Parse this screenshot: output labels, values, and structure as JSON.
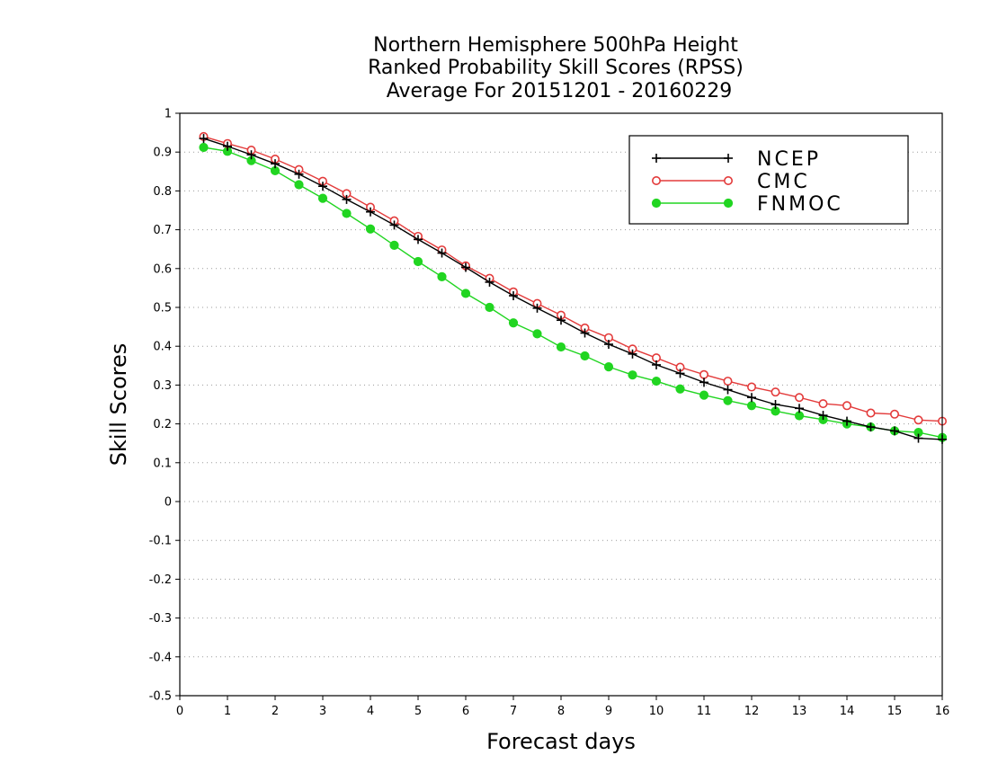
{
  "chart_data": {
    "type": "line",
    "title": [
      "Northern Hemisphere 500hPa Height",
      "Ranked Probability Skill Scores (RPSS)",
      "Average For 20151201 - 20160229"
    ],
    "xlabel": "Forecast days",
    "ylabel": "Skill Scores",
    "xlim": [
      0,
      16
    ],
    "ylim": [
      -0.5,
      1
    ],
    "x_ticks": [
      0,
      1,
      2,
      3,
      4,
      5,
      6,
      7,
      8,
      9,
      10,
      11,
      12,
      13,
      14,
      15,
      16
    ],
    "x_tick_labels": [
      "0",
      "1",
      "2",
      "3",
      "4",
      "5",
      "6",
      "7",
      "8",
      "9",
      "10",
      "11",
      "12",
      "13",
      "14",
      "15",
      "16"
    ],
    "y_ticks": [
      -0.5,
      -0.4,
      -0.3,
      -0.2,
      -0.1,
      0,
      0.1,
      0.2,
      0.3,
      0.4,
      0.5,
      0.6,
      0.7,
      0.8,
      0.9,
      1
    ],
    "y_tick_labels": [
      "-0.5",
      "-0.4",
      "-0.3",
      "-0.2",
      "-0.1",
      "0",
      "0.1",
      "0.2",
      "0.3",
      "0.4",
      "0.5",
      "0.6",
      "0.7",
      "0.8",
      "0.9",
      "1"
    ],
    "grid": "horizontal dotted",
    "legend_position": "top-right",
    "x": [
      0.5,
      1,
      1.5,
      2,
      2.5,
      3,
      3.5,
      4,
      4.5,
      5,
      5.5,
      6,
      6.5,
      7,
      7.5,
      8,
      8.5,
      9,
      9.5,
      10,
      10.5,
      11,
      11.5,
      12,
      12.5,
      13,
      13.5,
      14,
      14.5,
      15,
      15.5,
      16
    ],
    "series": [
      {
        "name": "NCEP",
        "color": "#000000",
        "marker": "plus",
        "values": [
          0.935,
          0.915,
          0.893,
          0.87,
          0.843,
          0.812,
          0.778,
          0.746,
          0.712,
          0.675,
          0.64,
          0.603,
          0.565,
          0.53,
          0.498,
          0.467,
          0.434,
          0.405,
          0.38,
          0.352,
          0.33,
          0.307,
          0.288,
          0.268,
          0.25,
          0.24,
          0.222,
          0.207,
          0.192,
          0.182,
          0.163,
          0.16
        ]
      },
      {
        "name": "CMC",
        "color": "#e33b3b",
        "marker": "open-circle",
        "values": [
          0.94,
          0.922,
          0.905,
          0.882,
          0.855,
          0.825,
          0.793,
          0.758,
          0.723,
          0.683,
          0.648,
          0.607,
          0.575,
          0.54,
          0.51,
          0.48,
          0.447,
          0.422,
          0.393,
          0.37,
          0.346,
          0.327,
          0.31,
          0.295,
          0.282,
          0.268,
          0.252,
          0.247,
          0.228,
          0.225,
          0.21,
          0.207
        ]
      },
      {
        "name": "FNMOC",
        "color": "#21d521",
        "marker": "filled-circle",
        "values": [
          0.912,
          0.902,
          0.878,
          0.852,
          0.816,
          0.781,
          0.742,
          0.702,
          0.66,
          0.618,
          0.579,
          0.536,
          0.5,
          0.46,
          0.432,
          0.398,
          0.375,
          0.347,
          0.326,
          0.31,
          0.29,
          0.274,
          0.26,
          0.247,
          0.233,
          0.221,
          0.211,
          0.2,
          0.192,
          0.182,
          0.178,
          0.165
        ]
      }
    ]
  }
}
